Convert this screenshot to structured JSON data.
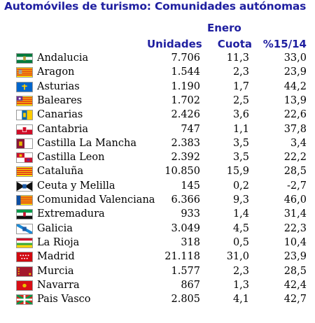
{
  "title": "Automóviles de turismo: Comunidades autónomas",
  "group_header": "Enero",
  "columns": {
    "unidades": "Unidades",
    "cuota": "Cuota",
    "pct": "%15/14"
  },
  "rows": [
    {
      "name": "Andalucia",
      "unidades": "7.706",
      "cuota": "11,3",
      "pct": "33,0",
      "flag_icon": "andalucia-flag-icon"
    },
    {
      "name": "Aragon",
      "unidades": "1.544",
      "cuota": "2,3",
      "pct": "23,9",
      "flag_icon": "aragon-flag-icon"
    },
    {
      "name": "Asturias",
      "unidades": "1.190",
      "cuota": "1,7",
      "pct": "44,2",
      "flag_icon": "asturias-flag-icon"
    },
    {
      "name": "Baleares",
      "unidades": "1.702",
      "cuota": "2,5",
      "pct": "13,9",
      "flag_icon": "baleares-flag-icon"
    },
    {
      "name": "Canarias",
      "unidades": "2.426",
      "cuota": "3,6",
      "pct": "22,6",
      "flag_icon": "canarias-flag-icon"
    },
    {
      "name": "Cantabria",
      "unidades": "747",
      "cuota": "1,1",
      "pct": "37,8",
      "flag_icon": "cantabria-flag-icon"
    },
    {
      "name": "Castilla La Mancha",
      "unidades": "2.383",
      "cuota": "3,5",
      "pct": "3,4",
      "flag_icon": "castilla-la-mancha-flag-icon"
    },
    {
      "name": "Castilla Leon",
      "unidades": "2.392",
      "cuota": "3,5",
      "pct": "22,2",
      "flag_icon": "castilla-leon-flag-icon"
    },
    {
      "name": "Cataluña",
      "unidades": "10.850",
      "cuota": "15,9",
      "pct": "28,5",
      "flag_icon": "cataluna-flag-icon"
    },
    {
      "name": "Ceuta y Melilla",
      "unidades": "145",
      "cuota": "0,2",
      "pct": "-2,7",
      "flag_icon": "ceuta-flag-icon"
    },
    {
      "name": "Comunidad Valenciana",
      "unidades": "6.366",
      "cuota": "9,3",
      "pct": "46,0",
      "flag_icon": "valencia-flag-icon"
    },
    {
      "name": "Extremadura",
      "unidades": "933",
      "cuota": "1,4",
      "pct": "31,4",
      "flag_icon": "extremadura-flag-icon"
    },
    {
      "name": "Galicia",
      "unidades": "3.049",
      "cuota": "4,5",
      "pct": "22,3",
      "flag_icon": "galicia-flag-icon"
    },
    {
      "name": "La Rioja",
      "unidades": "318",
      "cuota": "0,5",
      "pct": "10,4",
      "flag_icon": "la-rioja-flag-icon"
    },
    {
      "name": "Madrid",
      "unidades": "21.118",
      "cuota": "31,0",
      "pct": "23,9",
      "flag_icon": "madrid-flag-icon"
    },
    {
      "name": "Murcia",
      "unidades": "1.577",
      "cuota": "2,3",
      "pct": "28,5",
      "flag_icon": "murcia-flag-icon"
    },
    {
      "name": "Navarra",
      "unidades": "867",
      "cuota": "1,3",
      "pct": "42,4",
      "flag_icon": "navarra-flag-icon"
    },
    {
      "name": "Pais Vasco",
      "unidades": "2.805",
      "cuota": "4,1",
      "pct": "42,7",
      "flag_icon": "pais-vasco-flag-icon"
    }
  ]
}
